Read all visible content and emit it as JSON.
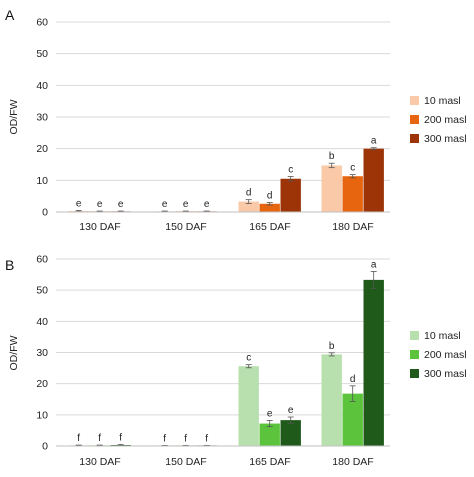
{
  "chart_data": [
    {
      "type": "bar",
      "panel_label": "A",
      "ylabel": "OD/FW",
      "ylim": [
        0,
        60
      ],
      "yticks": [
        0,
        10,
        20,
        30,
        40,
        50,
        60
      ],
      "categories": [
        "130 DAF",
        "150 DAF",
        "165 DAF",
        "180 DAF"
      ],
      "legend_position": "right",
      "series": [
        {
          "name": "10 masl",
          "color": "#f9c9a8",
          "values": [
            0.3,
            0.2,
            3.3,
            14.7
          ],
          "errors": [
            0.2,
            0.1,
            0.6,
            0.7
          ],
          "labels": [
            "e",
            "e",
            "d",
            "b"
          ]
        },
        {
          "name": "200 masl",
          "color": "#e8650f",
          "values": [
            0.2,
            0.2,
            2.6,
            11.3
          ],
          "errors": [
            0.1,
            0.1,
            0.4,
            0.5
          ],
          "labels": [
            "e",
            "e",
            "d",
            "c"
          ]
        },
        {
          "name": "300 masl",
          "color": "#9c3408",
          "values": [
            0.2,
            0.2,
            10.5,
            20.0
          ],
          "errors": [
            0.1,
            0.1,
            0.7,
            0.3
          ],
          "labels": [
            "e",
            "e",
            "c",
            "a"
          ]
        }
      ]
    },
    {
      "type": "bar",
      "panel_label": "B",
      "ylabel": "OD/FW",
      "ylim": [
        0,
        60
      ],
      "yticks": [
        0,
        10,
        20,
        30,
        40,
        50,
        60
      ],
      "categories": [
        "130 DAF",
        "150 DAF",
        "165 DAF",
        "180 DAF"
      ],
      "legend_position": "right",
      "series": [
        {
          "name": "10 masl",
          "color": "#b8e0ae",
          "values": [
            0.2,
            0.1,
            25.6,
            29.4
          ],
          "errors": [
            0.1,
            0.1,
            0.5,
            0.5
          ],
          "labels": [
            "f",
            "f",
            "c",
            "b"
          ]
        },
        {
          "name": "200 masl",
          "color": "#5cc43c",
          "values": [
            0.2,
            0.1,
            7.2,
            16.8
          ],
          "errors": [
            0.1,
            0.1,
            1.0,
            2.5
          ],
          "labels": [
            "f",
            "f",
            "e",
            "d"
          ]
        },
        {
          "name": "300 masl",
          "color": "#1f5a1a",
          "values": [
            0.3,
            0.1,
            8.3,
            53.3
          ],
          "errors": [
            0.2,
            0.1,
            1.0,
            2.7
          ],
          "labels": [
            "f",
            "f",
            "e",
            "a"
          ]
        }
      ]
    }
  ]
}
